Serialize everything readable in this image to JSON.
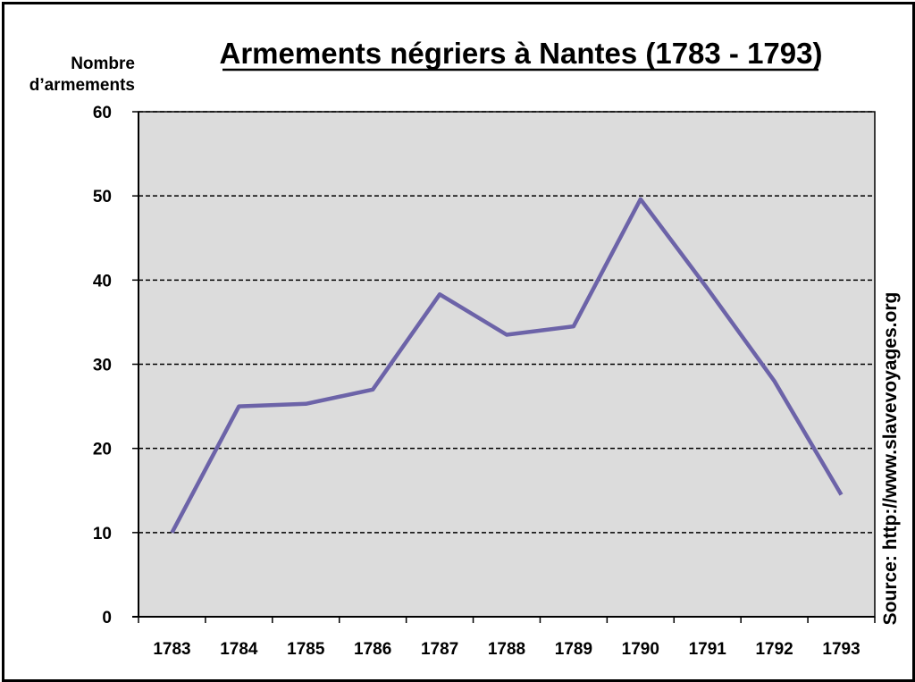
{
  "chart_data": {
    "type": "line",
    "title": "Armements négriers à Nantes (1783 - 1793)",
    "ylabel_lines": [
      "Nombre",
      "d’armements"
    ],
    "xlabel": "",
    "categories": [
      "1783",
      "1784",
      "1785",
      "1786",
      "1787",
      "1788",
      "1789",
      "1790",
      "1791",
      "1792",
      "1793"
    ],
    "series": [
      {
        "values": [
          10,
          25,
          25.3,
          27,
          38.3,
          33.5,
          34.5,
          49.6,
          39,
          28,
          14.5
        ]
      }
    ],
    "ylim": [
      0,
      60
    ],
    "yticks": [
      "0",
      "10",
      "20",
      "30",
      "40",
      "50",
      "60"
    ],
    "grid": true,
    "colors": {
      "line": "#6c63a8",
      "plot_bg": "#dcdcdc",
      "grid": "#000000"
    },
    "source": "Source: http://www.slavevoyages.org"
  }
}
